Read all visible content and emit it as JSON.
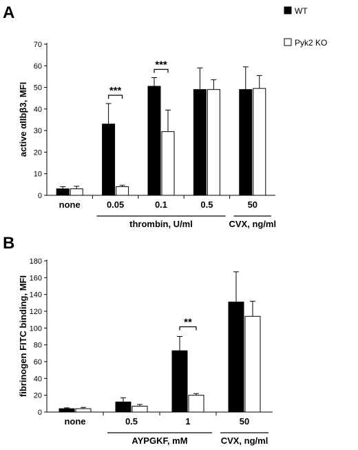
{
  "legend": {
    "wt": {
      "label": "WT",
      "color": "#000000"
    },
    "ko": {
      "label": "Pyk2 KO",
      "color": "#ffffff"
    }
  },
  "chart_data": [
    {
      "panel": "A",
      "type": "bar",
      "ylabel": "active αIIbβ3, MFI",
      "ylim": [
        0,
        70
      ],
      "yticks": [
        0,
        10,
        20,
        30,
        40,
        50,
        60,
        70
      ],
      "categories": [
        "none",
        "0.05",
        "0.1",
        "0.5",
        "50"
      ],
      "series": [
        {
          "name": "WT",
          "values": [
            3,
            33,
            50.5,
            49,
            49
          ],
          "errors": [
            1,
            9.5,
            4,
            10,
            10.5
          ]
        },
        {
          "name": "Pyk2 KO",
          "values": [
            3,
            4,
            29.5,
            49,
            49.5
          ],
          "errors": [
            1.2,
            0.7,
            10,
            4.5,
            6
          ]
        }
      ],
      "groups": [
        {
          "label": "thrombin, U/ml",
          "from": 1,
          "to": 3
        },
        {
          "label": "CVX, ng/ml",
          "from": 4,
          "to": 4
        }
      ],
      "significance": [
        {
          "category": 1,
          "label": "***"
        },
        {
          "category": 2,
          "label": "***"
        }
      ]
    },
    {
      "panel": "B",
      "type": "bar",
      "ylabel": "fibrinogen FITC binding, MFI",
      "ylim": [
        0,
        180
      ],
      "yticks": [
        0,
        20,
        40,
        60,
        80,
        100,
        120,
        140,
        160,
        180
      ],
      "categories": [
        "none",
        "0.5",
        "1",
        "50"
      ],
      "series": [
        {
          "name": "WT",
          "values": [
            4,
            12,
            73,
            131
          ],
          "errors": [
            1,
            5,
            17,
            36
          ]
        },
        {
          "name": "Pyk2 KO",
          "values": [
            4,
            7,
            20,
            114
          ],
          "errors": [
            1.5,
            2,
            2,
            18
          ]
        }
      ],
      "groups": [
        {
          "label": "AYPGKF, mM",
          "from": 1,
          "to": 2
        },
        {
          "label": "CVX, ng/ml",
          "from": 3,
          "to": 3
        }
      ],
      "significance": [
        {
          "category": 2,
          "label": "**"
        }
      ]
    }
  ]
}
